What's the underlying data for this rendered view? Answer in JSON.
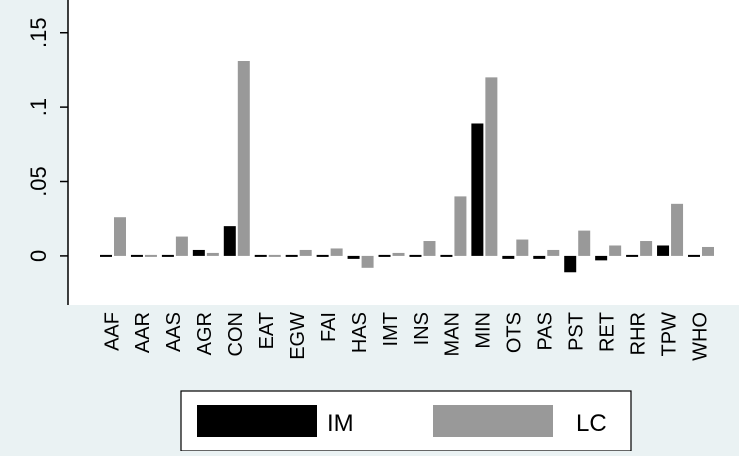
{
  "chart_data": {
    "type": "bar",
    "categories": [
      "AAF",
      "AAR",
      "AAS",
      "AGR",
      "CON",
      "EAT",
      "EGW",
      "FAI",
      "HAS",
      "IMT",
      "INS",
      "MAN",
      "MIN",
      "OTS",
      "PAS",
      "PST",
      "RET",
      "RHR",
      "TPW",
      "WHO"
    ],
    "series": [
      {
        "name": "IM",
        "color": "#000000",
        "values": [
          -0.001,
          -0.001,
          0.001,
          0.004,
          0.02,
          -0.001,
          -0.0005,
          -0.0005,
          -0.002,
          0.0005,
          -0.0005,
          -0.001,
          0.089,
          -0.002,
          -0.002,
          -0.011,
          -0.003,
          -0.0005,
          0.007,
          -0.001
        ]
      },
      {
        "name": "LC",
        "color": "#999999",
        "values": [
          0.026,
          -0.001,
          0.013,
          0.002,
          0.131,
          -0.001,
          0.004,
          0.005,
          -0.008,
          0.002,
          0.01,
          0.04,
          0.12,
          0.011,
          0.004,
          0.017,
          0.007,
          0.01,
          0.035,
          0.006
        ]
      }
    ],
    "y_ticks": [
      0,
      0.05,
      0.1,
      0.15
    ],
    "y_tick_labels": [
      "0",
      ".05",
      ".1",
      ".15"
    ],
    "ylim": [
      -0.033,
      0.172
    ],
    "grid": false,
    "legend_position": "bottom"
  },
  "colors": {
    "background": "#eaf2f3",
    "plot_background": "#ffffff",
    "im": "#000000",
    "lc": "#999999"
  }
}
